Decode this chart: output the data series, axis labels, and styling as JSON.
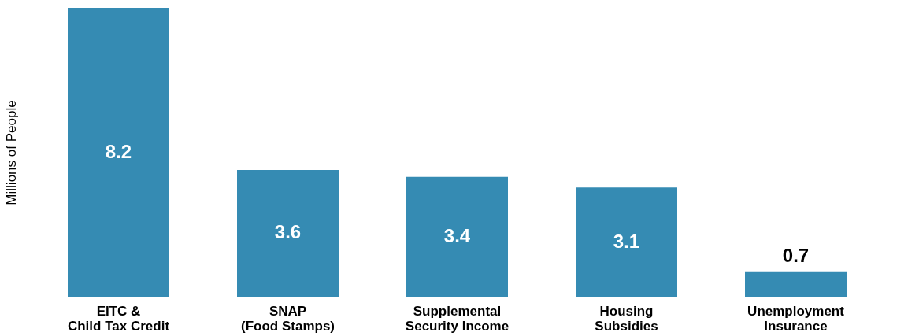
{
  "chart_data": {
    "type": "bar",
    "ylabel": "Millions of People",
    "categories": [
      "EITC &\nChild Tax Credit",
      "SNAP\n(Food Stamps)",
      "Supplemental\nSecurity Income",
      "Housing\nSubsidies",
      "Unemployment\nInsurance"
    ],
    "values": [
      8.2,
      3.6,
      3.4,
      3.1,
      0.7
    ],
    "color": "#358bb3",
    "data_labels": true
  }
}
